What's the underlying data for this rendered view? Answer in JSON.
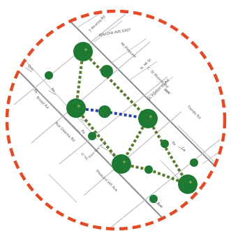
{
  "map": {
    "street_labels": [
      {
        "text": "3 Mvoreq Rd"
      },
      {
        "text": "WILLOW AVE EAST"
      },
      {
        "text": "Mt Pleasant"
      },
      {
        "text": "N. Mt St"
      },
      {
        "text": "C. St Mvoreq Rd"
      },
      {
        "text": "Sh Pdeton Sv Rd"
      },
      {
        "text": "Tiendo Rd"
      },
      {
        "text": "Broad Rd"
      },
      {
        "text": "Quo"
      },
      {
        "text": "Pe"
      },
      {
        "text": "Rue Dewsta Rd"
      },
      {
        "text": "Pa"
      },
      {
        "text": "Stans Spar Fe Rd"
      },
      {
        "text": "Fa Ln"
      },
      {
        "text": "Pe"
      },
      {
        "text": "Ca"
      },
      {
        "text": "ST RD"
      },
      {
        "text": "Pleasant Hill Ave"
      },
      {
        "text": "Rue"
      },
      {
        "text": "IWA"
      },
      {
        "text": "Pa"
      }
    ],
    "colors": {
      "boundary": "#e34a27",
      "node": "#1e7a32",
      "green_dotted_link": "#5a7a2e",
      "blue_dotted_link": "#2b3fa8",
      "road": "#bfbfbf",
      "major_road": "#8c8c8c"
    },
    "boundary_style": "dashed circle",
    "nodes": [
      {
        "name": "node-a",
        "size": "large"
      },
      {
        "name": "node-b",
        "size": "small"
      },
      {
        "name": "node-c",
        "size": "medium"
      },
      {
        "name": "node-d",
        "size": "large"
      },
      {
        "name": "node-e",
        "size": "medium"
      },
      {
        "name": "node-f",
        "size": "small"
      },
      {
        "name": "node-g",
        "size": "large"
      },
      {
        "name": "node-h",
        "size": "small"
      },
      {
        "name": "node-i",
        "size": "large"
      },
      {
        "name": "node-j",
        "size": "small"
      },
      {
        "name": "node-k",
        "size": "large"
      },
      {
        "name": "node-l",
        "size": "small"
      },
      {
        "name": "node-m",
        "size": "small"
      }
    ],
    "links": [
      {
        "from": "node-a",
        "to": "node-d",
        "style": "green-dotted"
      },
      {
        "from": "node-a",
        "to": "node-g",
        "style": "green-dotted"
      },
      {
        "from": "node-d",
        "to": "node-e",
        "style": "blue-dotted"
      },
      {
        "from": "node-e",
        "to": "node-g",
        "style": "blue-dotted"
      },
      {
        "from": "node-d",
        "to": "node-i",
        "style": "green-dotted"
      },
      {
        "from": "node-g",
        "to": "node-i",
        "style": "green-dotted"
      },
      {
        "from": "node-g",
        "to": "node-k",
        "style": "green-dotted"
      },
      {
        "from": "node-i",
        "to": "node-j",
        "style": "green-dotted"
      },
      {
        "from": "node-j",
        "to": "node-k",
        "style": "green-dotted"
      }
    ]
  }
}
